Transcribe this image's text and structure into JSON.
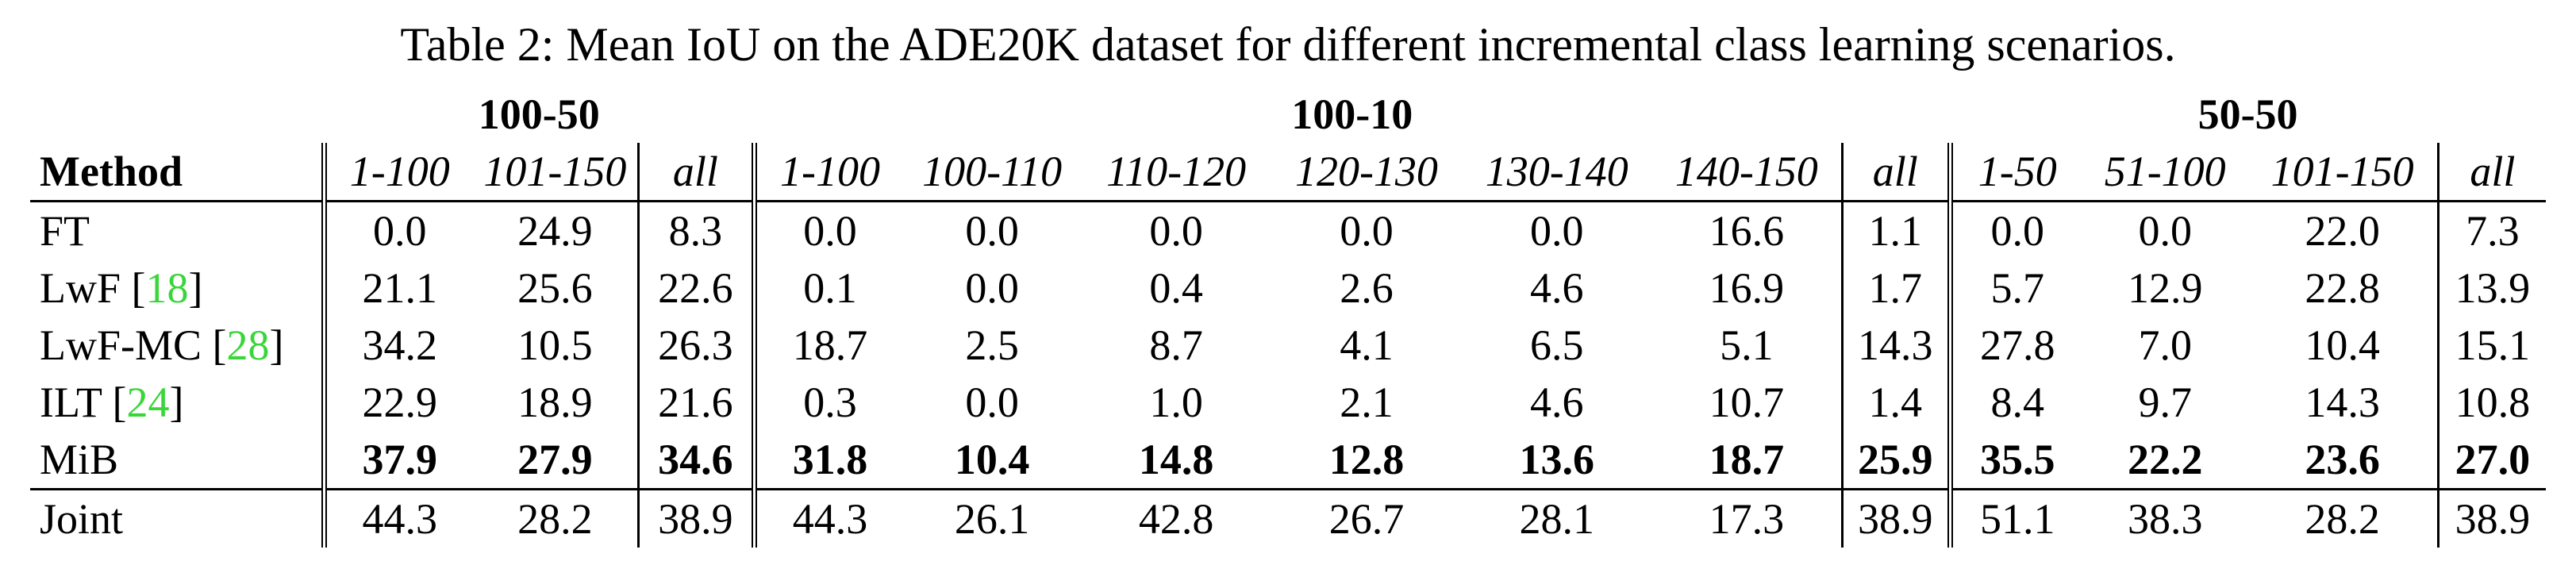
{
  "caption": "Table 2: Mean IoU on the ADE20K dataset for different incremental class learning scenarios.",
  "groups": [
    "100-50",
    "100-10",
    "50-50"
  ],
  "method_header": "Method",
  "subheaders": {
    "g1": [
      "1-100",
      "101-150",
      "all"
    ],
    "g2": [
      "1-100",
      "100-110",
      "110-120",
      "120-130",
      "130-140",
      "140-150",
      "all"
    ],
    "g3": [
      "1-50",
      "51-100",
      "101-150",
      "all"
    ]
  },
  "rows": [
    {
      "name": "FT",
      "cite": "",
      "values": [
        "0.0",
        "24.9",
        "8.3",
        "0.0",
        "0.0",
        "0.0",
        "0.0",
        "0.0",
        "16.6",
        "1.1",
        "0.0",
        "0.0",
        "22.0",
        "7.3"
      ]
    },
    {
      "name": "LwF [",
      "cite": "18",
      "close": "]",
      "values": [
        "21.1",
        "25.6",
        "22.6",
        "0.1",
        "0.0",
        "0.4",
        "2.6",
        "4.6",
        "16.9",
        "1.7",
        "5.7",
        "12.9",
        "22.8",
        "13.9"
      ]
    },
    {
      "name": "LwF-MC [",
      "cite": "28",
      "close": "]",
      "values": [
        "34.2",
        "10.5",
        "26.3",
        "18.7",
        "2.5",
        "8.7",
        "4.1",
        "6.5",
        "5.1",
        "14.3",
        "27.8",
        "7.0",
        "10.4",
        "15.1"
      ]
    },
    {
      "name": "ILT [",
      "cite": "24",
      "close": "]",
      "values": [
        "22.9",
        "18.9",
        "21.6",
        "0.3",
        "0.0",
        "1.0",
        "2.1",
        "4.6",
        "10.7",
        "1.4",
        "8.4",
        "9.7",
        "14.3",
        "10.8"
      ]
    },
    {
      "name": "MiB",
      "cite": "",
      "values": [
        "37.9",
        "27.9",
        "34.6",
        "31.8",
        "10.4",
        "14.8",
        "12.8",
        "13.6",
        "18.7",
        "25.9",
        "35.5",
        "22.2",
        "23.6",
        "27.0"
      ]
    },
    {
      "name": "Joint",
      "cite": "",
      "values": [
        "44.3",
        "28.2",
        "38.9",
        "44.3",
        "26.1",
        "42.8",
        "26.7",
        "28.1",
        "17.3",
        "38.9",
        "51.1",
        "38.3",
        "28.2",
        "38.9"
      ]
    }
  ],
  "colors": {
    "citation": "#39d639",
    "text": "#000000"
  }
}
